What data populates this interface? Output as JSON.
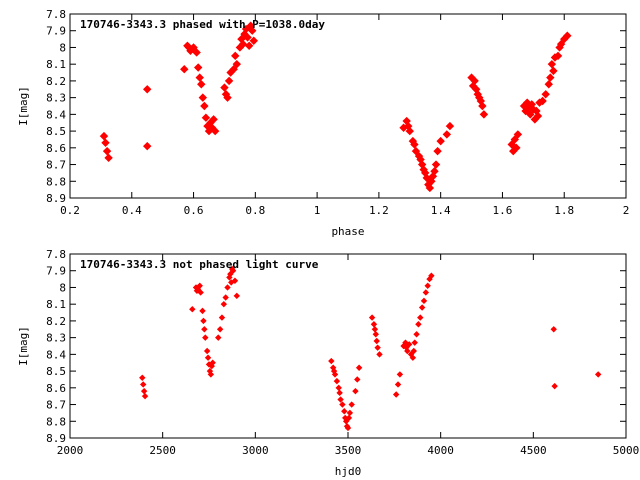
{
  "chart_data": [
    {
      "type": "scatter",
      "title": "170746-3343.3 phased with P=1038.0day",
      "xlabel": "phase",
      "ylabel": "I[mag]",
      "xlim": [
        0.2,
        2.0
      ],
      "ylim": [
        7.8,
        8.9
      ],
      "y_inverted": true,
      "x_ticks": [
        "0.2",
        "0.4",
        "0.6",
        "0.8",
        "1",
        "1.2",
        "1.4",
        "1.6",
        "1.8",
        "2"
      ],
      "x_tick_values": [
        0.2,
        0.4,
        0.6,
        0.8,
        1.0,
        1.2,
        1.4,
        1.6,
        1.8,
        2.0
      ],
      "y_ticks": [
        "7.8",
        "7.9",
        "8",
        "8.1",
        "8.2",
        "8.3",
        "8.4",
        "8.5",
        "8.6",
        "8.7",
        "8.8",
        "8.9"
      ],
      "y_tick_values": [
        7.8,
        7.9,
        8.0,
        8.1,
        8.2,
        8.3,
        8.4,
        8.5,
        8.6,
        8.7,
        8.8,
        8.9
      ],
      "grid": false,
      "marker_color": "#ff0000",
      "series": [
        {
          "x": [
            0.31,
            0.315,
            0.32,
            0.325,
            0.45,
            0.45,
            0.57,
            0.58,
            0.585,
            0.59,
            0.6,
            0.61,
            0.615,
            0.62,
            0.625,
            0.63,
            0.635,
            0.64,
            0.645,
            0.65,
            0.655,
            0.66,
            0.665,
            0.67,
            0.7,
            0.705,
            0.71,
            0.715,
            0.72,
            0.73,
            0.735,
            0.74,
            0.75,
            0.755,
            0.76,
            0.765,
            0.77,
            0.775,
            0.78,
            0.785,
            0.79,
            0.795,
            1.28,
            1.29,
            1.295,
            1.3,
            1.31,
            1.315,
            1.32,
            1.33,
            1.335,
            1.34,
            1.345,
            1.35,
            1.355,
            1.36,
            1.365,
            1.37,
            1.375,
            1.38,
            1.385,
            1.39,
            1.4,
            1.42,
            1.43,
            1.5,
            1.505,
            1.51,
            1.515,
            1.52,
            1.525,
            1.53,
            1.535,
            1.54,
            1.63,
            1.635,
            1.64,
            1.645,
            1.65,
            1.67,
            1.675,
            1.68,
            1.685,
            1.69,
            1.695,
            1.7,
            1.705,
            1.71,
            1.715,
            1.72,
            1.73,
            1.74,
            1.75,
            1.755,
            1.76,
            1.765,
            1.77,
            1.78,
            1.785,
            1.79,
            1.8,
            1.81
          ],
          "y": [
            8.53,
            8.57,
            8.62,
            8.66,
            8.25,
            8.59,
            8.13,
            7.99,
            8.0,
            8.02,
            8.0,
            8.03,
            8.12,
            8.18,
            8.22,
            8.3,
            8.35,
            8.42,
            8.47,
            8.5,
            8.45,
            8.48,
            8.43,
            8.5,
            8.24,
            8.28,
            8.3,
            8.2,
            8.15,
            8.13,
            8.05,
            8.1,
            8.0,
            7.95,
            7.98,
            7.92,
            7.89,
            7.94,
            7.99,
            7.87,
            7.9,
            7.96,
            8.48,
            8.44,
            8.47,
            8.5,
            8.56,
            8.58,
            8.62,
            8.65,
            8.67,
            8.7,
            8.73,
            8.75,
            8.78,
            8.82,
            8.84,
            8.8,
            8.77,
            8.74,
            8.7,
            8.62,
            8.56,
            8.52,
            8.47,
            8.18,
            8.23,
            8.2,
            8.25,
            8.28,
            8.3,
            8.32,
            8.35,
            8.4,
            8.58,
            8.62,
            8.55,
            8.6,
            8.52,
            8.35,
            8.38,
            8.33,
            8.36,
            8.4,
            8.34,
            8.37,
            8.43,
            8.38,
            8.41,
            8.33,
            8.32,
            8.28,
            8.22,
            8.18,
            8.1,
            8.14,
            8.06,
            8.05,
            8.0,
            7.98,
            7.95,
            7.93
          ]
        }
      ]
    },
    {
      "type": "scatter",
      "title": "170746-3343.3 not phased light curve",
      "xlabel": "hjd0",
      "ylabel": "I[mag]",
      "xlim": [
        2000,
        5000
      ],
      "ylim": [
        7.8,
        8.9
      ],
      "y_inverted": true,
      "x_ticks": [
        "2000",
        "2500",
        "3000",
        "3500",
        "4000",
        "4500",
        "5000"
      ],
      "x_tick_values": [
        2000,
        2500,
        3000,
        3500,
        4000,
        4500,
        5000
      ],
      "y_ticks": [
        "7.8",
        "7.9",
        "8",
        "8.1",
        "8.2",
        "8.3",
        "8.4",
        "8.5",
        "8.6",
        "8.7",
        "8.8",
        "8.9"
      ],
      "y_tick_values": [
        7.8,
        7.9,
        8.0,
        8.1,
        8.2,
        8.3,
        8.4,
        8.5,
        8.6,
        8.7,
        8.8,
        8.9
      ],
      "grid": false,
      "marker_color": "#ff0000",
      "series": [
        {
          "x": [
            2390,
            2395,
            2400,
            2405,
            2660,
            2680,
            2685,
            2690,
            2700,
            2705,
            2715,
            2720,
            2725,
            2730,
            2740,
            2745,
            2750,
            2755,
            2760,
            2765,
            2770,
            2800,
            2810,
            2820,
            2830,
            2840,
            2850,
            2860,
            2865,
            2870,
            2875,
            2880,
            2890,
            2900,
            3410,
            3420,
            3425,
            3430,
            3440,
            3450,
            3455,
            3460,
            3470,
            3480,
            3485,
            3490,
            3495,
            3500,
            3505,
            3510,
            3520,
            3540,
            3550,
            3560,
            3630,
            3640,
            3645,
            3650,
            3655,
            3660,
            3670,
            3760,
            3770,
            3780,
            3800,
            3810,
            3815,
            3820,
            3830,
            3840,
            3850,
            3855,
            3860,
            3870,
            3880,
            3890,
            3900,
            3910,
            3920,
            3930,
            3940,
            3950,
            4610,
            4615,
            4850
          ],
          "y": [
            8.54,
            8.58,
            8.62,
            8.65,
            8.13,
            8.0,
            8.02,
            8.01,
            7.99,
            8.03,
            8.14,
            8.2,
            8.25,
            8.3,
            8.38,
            8.42,
            8.46,
            8.5,
            8.52,
            8.47,
            8.45,
            8.3,
            8.25,
            8.18,
            8.1,
            8.06,
            8.0,
            7.94,
            7.92,
            7.97,
            7.89,
            7.9,
            7.96,
            8.05,
            8.44,
            8.48,
            8.5,
            8.52,
            8.56,
            8.6,
            8.63,
            8.67,
            8.7,
            8.74,
            8.78,
            8.8,
            8.83,
            8.84,
            8.78,
            8.75,
            8.7,
            8.62,
            8.55,
            8.48,
            8.18,
            8.22,
            8.25,
            8.28,
            8.32,
            8.36,
            8.4,
            8.64,
            8.58,
            8.52,
            8.35,
            8.33,
            8.36,
            8.38,
            8.34,
            8.4,
            8.42,
            8.38,
            8.33,
            8.28,
            8.22,
            8.18,
            8.12,
            8.08,
            8.03,
            7.99,
            7.95,
            7.93,
            8.25,
            8.59,
            8.52
          ]
        }
      ]
    }
  ]
}
